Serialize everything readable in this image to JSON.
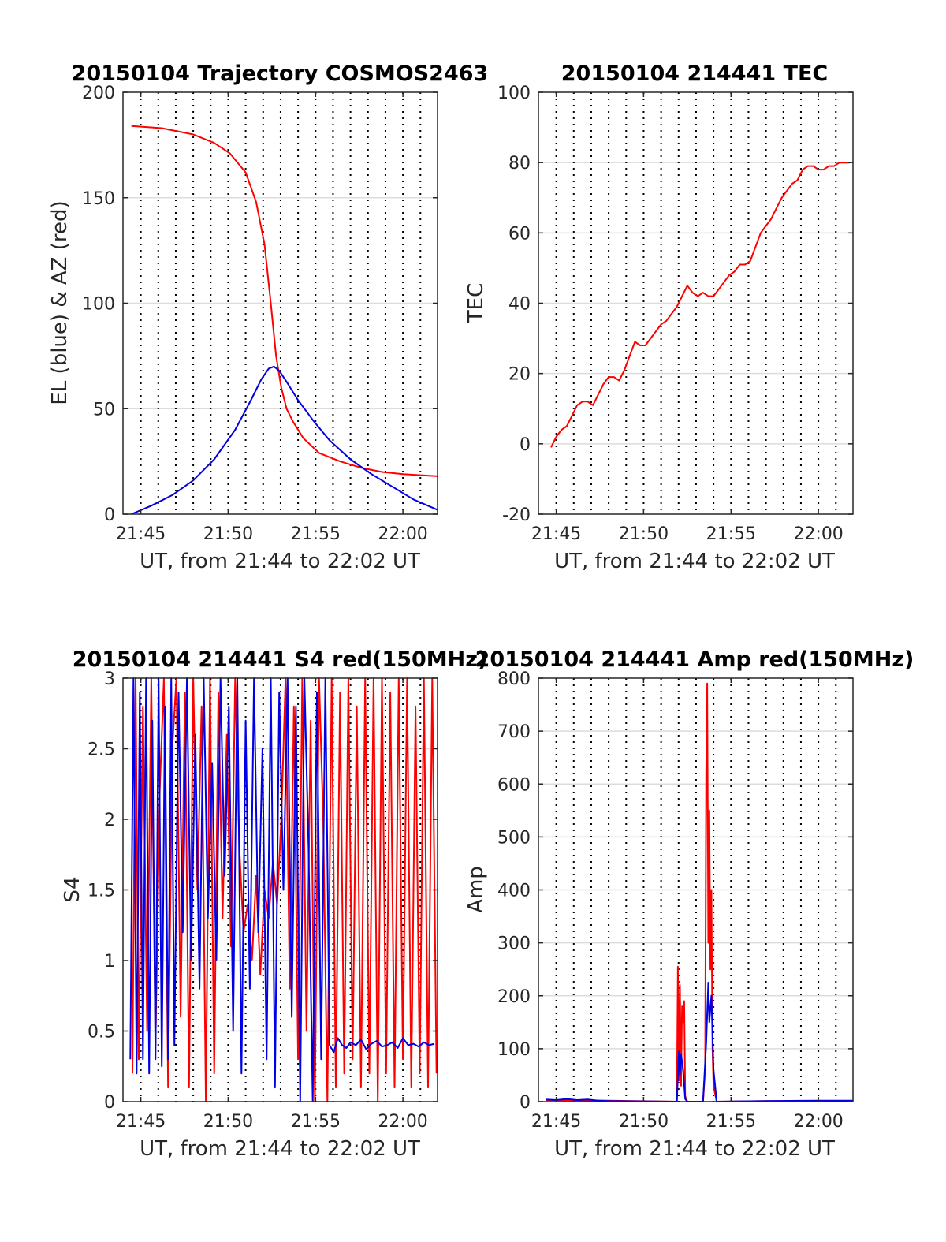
{
  "colors": {
    "red": "#ff0000",
    "blue": "#0000e6",
    "grid": "#dcdcdc",
    "axis": "#262626"
  },
  "chart_data": [
    {
      "id": "trajectory",
      "type": "line",
      "title": "20150104 Trajectory COSMOS2463",
      "xlabel": "UT, from 21:44 to 22:02 UT",
      "ylabel": "EL (blue) & AZ (red)",
      "xlim": [
        21.733,
        22.033
      ],
      "ylim": [
        0,
        200
      ],
      "xticks": [
        21.75,
        21.8333,
        21.9167,
        22.0
      ],
      "xticklabels": [
        "21:45",
        "21:50",
        "21:55",
        "22:00"
      ],
      "yticks": [
        0,
        50,
        100,
        150,
        200
      ],
      "yticklabels": [
        "0",
        "50",
        "100",
        "150",
        "200"
      ],
      "grid": true,
      "series": [
        {
          "color": "red",
          "x": [
            21.741,
            21.77,
            21.8,
            21.82,
            21.835,
            21.85,
            21.86,
            21.868,
            21.874,
            21.879,
            21.884,
            21.889,
            21.895,
            21.905,
            21.92,
            21.94,
            21.96,
            21.98,
            22.0,
            22.033
          ],
          "y": [
            184,
            183,
            180,
            176,
            171,
            162,
            148,
            128,
            100,
            75,
            60,
            50,
            44,
            36,
            29,
            25,
            22,
            20,
            19,
            18
          ]
        },
        {
          "color": "blue",
          "x": [
            21.741,
            21.76,
            21.78,
            21.8,
            21.82,
            21.84,
            21.855,
            21.865,
            21.872,
            21.877,
            21.882,
            21.89,
            21.9,
            21.915,
            21.93,
            21.95,
            21.97,
            21.99,
            22.01,
            22.033
          ],
          "y": [
            0,
            4,
            9,
            16,
            26,
            40,
            54,
            64,
            69,
            70,
            68,
            62,
            54,
            44,
            35,
            26,
            19,
            13,
            7,
            2
          ]
        }
      ]
    },
    {
      "id": "tec",
      "type": "line",
      "title": "20150104 214441 TEC",
      "xlabel": "UT, from 21:44 to 22:02 UT",
      "ylabel": "TEC",
      "xlim": [
        21.733,
        22.033
      ],
      "ylim": [
        -20,
        100
      ],
      "xticks": [
        21.75,
        21.8333,
        21.9167,
        22.0
      ],
      "xticklabels": [
        "21:45",
        "21:50",
        "21:55",
        "22:00"
      ],
      "yticks": [
        -20,
        0,
        20,
        40,
        60,
        80,
        100
      ],
      "yticklabels": [
        "-20",
        "0",
        "20",
        "40",
        "60",
        "80",
        "100"
      ],
      "grid": true,
      "series": [
        {
          "color": "red",
          "x": [
            21.745,
            21.75,
            21.755,
            21.76,
            21.765,
            21.77,
            21.775,
            21.78,
            21.785,
            21.79,
            21.795,
            21.8,
            21.805,
            21.81,
            21.815,
            21.82,
            21.825,
            21.83,
            21.835,
            21.84,
            21.845,
            21.85,
            21.855,
            21.86,
            21.865,
            21.87,
            21.875,
            21.88,
            21.885,
            21.89,
            21.895,
            21.9,
            21.905,
            21.91,
            21.915,
            21.92,
            21.925,
            21.93,
            21.935,
            21.94,
            21.945,
            21.95,
            21.955,
            21.96,
            21.965,
            21.97,
            21.975,
            21.98,
            21.985,
            21.99,
            21.995,
            22.0,
            22.005,
            22.01,
            22.015,
            22.02,
            22.025,
            22.03
          ],
          "y": [
            -1,
            2,
            4,
            5,
            8,
            11,
            12,
            12,
            11,
            14,
            17,
            19,
            19,
            18,
            21,
            25,
            29,
            28,
            28,
            30,
            32,
            34,
            35,
            37,
            39,
            42,
            45,
            43,
            42,
            43,
            42,
            42,
            44,
            46,
            48,
            49,
            51,
            51,
            52,
            56,
            60,
            62,
            64,
            67,
            70,
            72,
            74,
            75,
            78,
            79,
            79,
            78,
            78,
            79,
            79,
            80,
            80,
            80
          ]
        }
      ]
    },
    {
      "id": "s4",
      "type": "line",
      "title": "20150104 214441 S4 red(150MHz)",
      "xlabel": "UT, from 21:44 to 22:02 UT",
      "ylabel": "S4",
      "xlim": [
        21.733,
        22.033
      ],
      "ylim": [
        0,
        3
      ],
      "xticks": [
        21.75,
        21.8333,
        21.9167,
        22.0
      ],
      "xticklabels": [
        "21:45",
        "21:50",
        "21:55",
        "22:00"
      ],
      "yticks": [
        0,
        0.5,
        1,
        1.5,
        2,
        2.5,
        3
      ],
      "yticklabels": [
        "0",
        "0.5",
        "1",
        "1.5",
        "2",
        "2.5",
        "3"
      ],
      "grid": true,
      "series": [
        {
          "color": "red",
          "x": [
            21.742,
            21.745,
            21.748,
            21.752,
            21.756,
            21.76,
            21.764,
            21.768,
            21.772,
            21.776,
            21.78,
            21.784,
            21.788,
            21.792,
            21.796,
            21.8,
            21.804,
            21.808,
            21.812,
            21.816,
            21.82,
            21.824,
            21.828,
            21.832,
            21.836,
            21.84,
            21.844,
            21.848,
            21.852,
            21.856,
            21.86,
            21.864,
            21.868,
            21.872,
            21.876,
            21.88,
            21.884,
            21.888,
            21.892,
            21.896,
            21.9,
            21.904,
            21.908,
            21.912,
            21.916,
            21.92,
            21.924,
            21.928,
            21.932,
            21.936,
            21.94,
            21.944,
            21.948,
            21.952,
            21.956,
            21.96,
            21.964,
            21.968,
            21.972,
            21.976,
            21.98,
            21.984,
            21.988,
            21.992,
            21.996,
            22.0,
            22.004,
            22.008,
            22.012,
            22.016,
            22.02,
            22.024,
            22.028,
            22.032
          ],
          "y": [
            0.2,
            3.0,
            0.3,
            2.8,
            0.5,
            3.0,
            0.4,
            2.2,
            3.0,
            0.1,
            2.5,
            3.0,
            0.6,
            2.9,
            0.1,
            3.0,
            1.5,
            2.8,
            0.0,
            3.0,
            0.2,
            2.9,
            1.3,
            2.6,
            1.1,
            3.0,
            1.8,
            1.2,
            1.4,
            1.0,
            1.6,
            0.9,
            1.5,
            1.3,
            1.7,
            1.4,
            2.0,
            3.0,
            0.8,
            2.8,
            0.3,
            3.0,
            0.5,
            2.7,
            0.0,
            3.0,
            2.0,
            0.0,
            3.0,
            0.1,
            2.9,
            0.2,
            3.0,
            0.3,
            2.8,
            0.1,
            3.0,
            0.2,
            3.0,
            0.0,
            3.0,
            0.2,
            2.9,
            0.1,
            3.0,
            0.3,
            3.0,
            0.1,
            2.8,
            0.2,
            3.0,
            0.1,
            3.0,
            0.2
          ]
        },
        {
          "color": "blue",
          "x": [
            21.74,
            21.743,
            21.746,
            21.749,
            21.752,
            21.755,
            21.758,
            21.761,
            21.764,
            21.767,
            21.77,
            21.773,
            21.776,
            21.779,
            21.782,
            21.786,
            21.79,
            21.794,
            21.798,
            21.802,
            21.806,
            21.81,
            21.814,
            21.818,
            21.822,
            21.826,
            21.83,
            21.834,
            21.838,
            21.842,
            21.846,
            21.85,
            21.854,
            21.858,
            21.862,
            21.866,
            21.87,
            21.874,
            21.878,
            21.882,
            21.886,
            21.89,
            21.894,
            21.898,
            21.902,
            21.906,
            21.91,
            21.914,
            21.918,
            21.922,
            21.926,
            21.93,
            21.934,
            21.938,
            21.942,
            21.946,
            21.95,
            21.955,
            21.96,
            21.965,
            21.97,
            21.975,
            21.98,
            21.985,
            21.99,
            21.995,
            22.0,
            22.005,
            22.01,
            22.015,
            22.02,
            22.025,
            22.03
          ],
          "y": [
            0.3,
            3.0,
            0.2,
            2.9,
            0.3,
            3.0,
            0.2,
            2.7,
            0.3,
            3.0,
            0.25,
            2.8,
            0.3,
            3.0,
            0.4,
            2.9,
            1.2,
            3.0,
            1.0,
            2.6,
            0.8,
            3.0,
            1.3,
            2.4,
            1.0,
            3.0,
            1.6,
            2.8,
            0.5,
            3.0,
            0.2,
            2.7,
            0.8,
            3.0,
            1.2,
            2.5,
            0.3,
            3.0,
            0.1,
            2.9,
            1.5,
            3.0,
            0.6,
            2.8,
            0.0,
            3.0,
            1.8,
            0.0,
            2.9,
            0.3,
            3.0,
            0.4,
            0.35,
            0.45,
            0.4,
            0.38,
            0.42,
            0.4,
            0.44,
            0.37,
            0.41,
            0.43,
            0.39,
            0.4,
            0.42,
            0.38,
            0.45,
            0.4,
            0.41,
            0.39,
            0.42,
            0.4,
            0.41
          ]
        }
      ]
    },
    {
      "id": "amp",
      "type": "line",
      "title": "20150104 214441 Amp red(150MHz)",
      "xlabel": "UT, from 21:44 to 22:02 UT",
      "ylabel": "Amp",
      "xlim": [
        21.733,
        22.033
      ],
      "ylim": [
        0,
        800
      ],
      "xticks": [
        21.75,
        21.8333,
        21.9167,
        22.0
      ],
      "xticklabels": [
        "21:45",
        "21:50",
        "21:55",
        "22:00"
      ],
      "yticks": [
        0,
        100,
        200,
        300,
        400,
        500,
        600,
        700,
        800
      ],
      "yticklabels": [
        "0",
        "100",
        "200",
        "300",
        "400",
        "500",
        "600",
        "700",
        "800"
      ],
      "grid": true,
      "series": [
        {
          "color": "red",
          "x": [
            21.74,
            21.8,
            21.865,
            21.866,
            21.867,
            21.868,
            21.869,
            21.87,
            21.871,
            21.872,
            21.873,
            21.875,
            21.89,
            21.892,
            21.893,
            21.894,
            21.895,
            21.896,
            21.897,
            21.898,
            21.899,
            21.9,
            21.903,
            21.95,
            22.033
          ],
          "y": [
            3,
            2,
            0,
            255,
            40,
            220,
            30,
            180,
            150,
            190,
            10,
            0,
            0,
            60,
            620,
            790,
            300,
            550,
            250,
            400,
            100,
            30,
            0,
            1,
            1
          ]
        },
        {
          "color": "blue",
          "x": [
            21.74,
            21.75,
            21.76,
            21.77,
            21.78,
            21.79,
            21.8,
            21.865,
            21.867,
            21.868,
            21.869,
            21.871,
            21.873,
            21.875,
            21.89,
            21.893,
            21.895,
            21.896,
            21.898,
            21.9,
            21.903,
            21.95,
            22.0,
            22.033
          ],
          "y": [
            4,
            3,
            5,
            3,
            4,
            2,
            1,
            0,
            95,
            50,
            90,
            60,
            5,
            0,
            0,
            110,
            225,
            150,
            200,
            60,
            0,
            1,
            2,
            2
          ]
        }
      ]
    }
  ]
}
